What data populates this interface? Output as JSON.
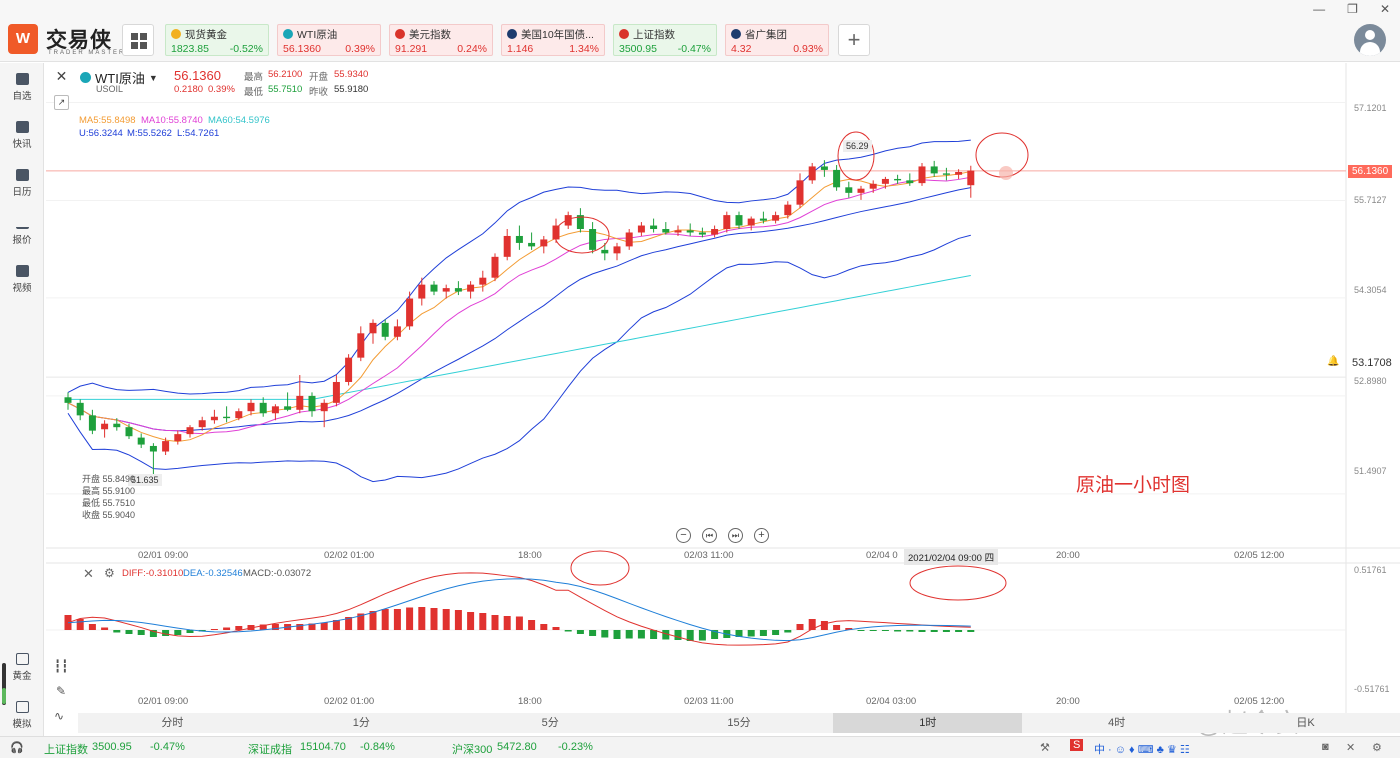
{
  "app": {
    "logo_letter": "W",
    "brand": "交易侠",
    "brand_sub": "TRADER MASTER"
  },
  "tickers": [
    {
      "name": "现货黄金",
      "price": "1823.85",
      "change": "-0.52%",
      "trend": "down",
      "icon_color": "#f2b01e"
    },
    {
      "name": "WTI原油",
      "price": "56.1360",
      "change": "0.39%",
      "trend": "up",
      "icon_color": "#1aa6b7"
    },
    {
      "name": "美元指数",
      "price": "91.291",
      "change": "0.24%",
      "trend": "up",
      "icon_color": "#d9342b"
    },
    {
      "name": "美国10年国债...",
      "price": "1.146",
      "change": "1.34%",
      "trend": "up",
      "icon_color": "#1d3c6e"
    },
    {
      "name": "上证指数",
      "price": "3500.95",
      "change": "-0.47%",
      "trend": "down",
      "icon_color": "#d9342b"
    },
    {
      "name": "省广集团",
      "price": "4.32",
      "change": "0.93%",
      "trend": "up",
      "icon_color": "#1d3c6e"
    }
  ],
  "sidebar": {
    "items": [
      {
        "label": "自选",
        "icon": "star-icon"
      },
      {
        "label": "快讯",
        "icon": "news-icon"
      },
      {
        "label": "日历",
        "icon": "calendar-icon"
      },
      {
        "label": "报价",
        "icon": "quote-icon"
      },
      {
        "label": "视频",
        "icon": "video-icon"
      }
    ],
    "bottom_items": [
      {
        "label": "黄金",
        "icon": "gold-icon"
      },
      {
        "label": "模拟",
        "icon": "simulate-icon"
      }
    ]
  },
  "header": {
    "name": "WTI原油",
    "code": "USOIL",
    "price": "56.1360",
    "change": "0.2180",
    "change_pct": "0.39%",
    "high_label": "最高",
    "high": "56.2100",
    "low_label": "最低",
    "low": "55.7510",
    "open_label": "开盘",
    "open": "55.9340",
    "prev_label": "昨收",
    "prev": "55.9180"
  },
  "ma_legend": {
    "ma5": "MA5:55.8498",
    "ma10": "MA10:55.8740",
    "ma60": "MA60:54.5976"
  },
  "boll_legend": {
    "u": "U:56.3244",
    "m": "M:55.5262",
    "l": "L:54.7261"
  },
  "price_axis": {
    "ticks": [
      "57.1201",
      "55.7127",
      "54.3054",
      "52.8980",
      "51.4907"
    ],
    "current_price": "56.1360",
    "alert_price": "53.1708"
  },
  "time_axis": [
    "02/01 09:00",
    "02/02 01:00",
    "18:00",
    "02/03 11:00",
    "02/04 0",
    "20:00",
    "02/05 12:00"
  ],
  "time_axis_lower": [
    "02/01 09:00",
    "02/02 01:00",
    "18:00",
    "02/03 11:00",
    "02/04 03:00",
    "20:00",
    "02/05 12:00"
  ],
  "crosshair_time": "2021/02/04 09:00 四",
  "peak_label": "56.29",
  "low_marker": "51.635",
  "ohlc_tip": {
    "open": "开盘 55.8490",
    "high": "最高 55.9100",
    "low": "最低 55.7510",
    "close": "收盘 55.9040"
  },
  "annotation": "原油一小时图",
  "macd_legend": {
    "diff": "DIFF:-0.31010",
    "dea": "DEA:-0.32546",
    "macd": "MACD:-0.03072"
  },
  "macd_axis": [
    "0.51761",
    "-0.51761"
  ],
  "timeframes": [
    "分时",
    "1分",
    "5分",
    "15分",
    "1时",
    "4时",
    "日K"
  ],
  "active_timeframe": "1时",
  "status": {
    "items": [
      {
        "name": "上证指数",
        "value": "3500.95",
        "change": "-0.47%"
      },
      {
        "name": "深证成指",
        "value": "15104.70",
        "change": "-0.84%"
      },
      {
        "name": "沪深300",
        "value": "5472.80",
        "change": "-0.23%"
      }
    ]
  },
  "watermark": "@赵今安1",
  "colors": {
    "up": "#e0322f",
    "down": "#1ea03c",
    "ma5": "#f39c34",
    "ma10": "#e040d6",
    "ma60": "#33d0d6",
    "boll": "#1f3fd8"
  },
  "chart_data": {
    "type": "candlestick",
    "title": "WTI原油",
    "ylim": [
      51.0,
      57.4
    ],
    "candles": [
      [
        52.88,
        52.95,
        52.7,
        52.8
      ],
      [
        52.8,
        52.85,
        52.55,
        52.62
      ],
      [
        52.62,
        52.7,
        52.35,
        52.4
      ],
      [
        52.42,
        52.55,
        52.3,
        52.5
      ],
      [
        52.5,
        52.58,
        52.4,
        52.45
      ],
      [
        52.45,
        52.5,
        52.28,
        52.32
      ],
      [
        52.3,
        52.36,
        52.15,
        52.2
      ],
      [
        52.18,
        52.22,
        51.63,
        52.1
      ],
      [
        52.1,
        52.3,
        52.05,
        52.25
      ],
      [
        52.25,
        52.4,
        52.2,
        52.35
      ],
      [
        52.35,
        52.48,
        52.3,
        52.45
      ],
      [
        52.45,
        52.6,
        52.4,
        52.55
      ],
      [
        52.55,
        52.7,
        52.5,
        52.6
      ],
      [
        52.6,
        52.75,
        52.52,
        52.58
      ],
      [
        52.58,
        52.72,
        52.55,
        52.68
      ],
      [
        52.68,
        52.85,
        52.62,
        52.8
      ],
      [
        52.8,
        52.88,
        52.6,
        52.65
      ],
      [
        52.65,
        52.78,
        52.55,
        52.75
      ],
      [
        52.75,
        52.95,
        52.68,
        52.7
      ],
      [
        52.7,
        53.2,
        52.65,
        52.9
      ],
      [
        52.9,
        52.95,
        52.6,
        52.68
      ],
      [
        52.68,
        52.85,
        52.45,
        52.8
      ],
      [
        52.8,
        53.2,
        52.75,
        53.1
      ],
      [
        53.1,
        53.5,
        53.05,
        53.45
      ],
      [
        53.45,
        53.9,
        53.4,
        53.8
      ],
      [
        53.8,
        54.0,
        53.65,
        53.95
      ],
      [
        53.95,
        54.0,
        53.7,
        53.75
      ],
      [
        53.75,
        54.0,
        53.7,
        53.9
      ],
      [
        53.9,
        54.4,
        53.85,
        54.3
      ],
      [
        54.3,
        54.6,
        54.2,
        54.5
      ],
      [
        54.5,
        54.55,
        54.35,
        54.4
      ],
      [
        54.4,
        54.5,
        54.3,
        54.45
      ],
      [
        54.45,
        54.55,
        54.35,
        54.4
      ],
      [
        54.4,
        54.55,
        54.3,
        54.5
      ],
      [
        54.5,
        54.7,
        54.4,
        54.6
      ],
      [
        54.6,
        54.95,
        54.55,
        54.9
      ],
      [
        54.9,
        55.3,
        54.85,
        55.2
      ],
      [
        55.2,
        55.35,
        55.0,
        55.1
      ],
      [
        55.1,
        55.25,
        55.0,
        55.05
      ],
      [
        55.05,
        55.2,
        54.95,
        55.15
      ],
      [
        55.15,
        55.45,
        55.1,
        55.35
      ],
      [
        55.35,
        55.55,
        55.3,
        55.5
      ],
      [
        55.5,
        55.6,
        55.25,
        55.3
      ],
      [
        55.3,
        55.4,
        54.95,
        55.0
      ],
      [
        55.0,
        55.1,
        54.85,
        54.95
      ],
      [
        54.95,
        55.1,
        54.85,
        55.05
      ],
      [
        55.05,
        55.3,
        55.0,
        55.25
      ],
      [
        55.25,
        55.4,
        55.2,
        55.35
      ],
      [
        55.35,
        55.45,
        55.25,
        55.3
      ],
      [
        55.3,
        55.4,
        55.22,
        55.25
      ],
      [
        55.25,
        55.35,
        55.2,
        55.28
      ],
      [
        55.28,
        55.38,
        55.2,
        55.25
      ],
      [
        55.25,
        55.32,
        55.18,
        55.22
      ],
      [
        55.22,
        55.35,
        55.18,
        55.3
      ],
      [
        55.3,
        55.55,
        55.25,
        55.5
      ],
      [
        55.5,
        55.55,
        55.3,
        55.35
      ],
      [
        55.35,
        55.48,
        55.28,
        55.45
      ],
      [
        55.45,
        55.55,
        55.38,
        55.42
      ],
      [
        55.42,
        55.55,
        55.38,
        55.5
      ],
      [
        55.5,
        55.7,
        55.45,
        55.65
      ],
      [
        55.65,
        56.1,
        55.6,
        56.0
      ],
      [
        56.0,
        56.25,
        55.95,
        56.2
      ],
      [
        56.2,
        56.29,
        56.05,
        56.15
      ],
      [
        56.15,
        56.22,
        55.85,
        55.9
      ],
      [
        55.9,
        55.98,
        55.75,
        55.82
      ],
      [
        55.82,
        55.92,
        55.72,
        55.88
      ],
      [
        55.88,
        56.0,
        55.82,
        55.95
      ],
      [
        55.95,
        56.05,
        55.88,
        56.02
      ],
      [
        56.02,
        56.08,
        55.95,
        56.0
      ],
      [
        56.0,
        56.1,
        55.92,
        55.96
      ],
      [
        55.96,
        56.25,
        55.92,
        56.2
      ],
      [
        56.2,
        56.28,
        56.05,
        56.1
      ],
      [
        56.1,
        56.18,
        56.0,
        56.08
      ],
      [
        56.08,
        56.16,
        56.02,
        56.12
      ],
      [
        55.93,
        56.21,
        55.75,
        56.14
      ]
    ],
    "macd_hist": [
      0.3,
      0.22,
      0.12,
      0.05,
      -0.05,
      -0.08,
      -0.1,
      -0.14,
      -0.12,
      -0.1,
      -0.06,
      -0.03,
      0.02,
      0.05,
      0.08,
      0.1,
      0.11,
      0.12,
      0.12,
      0.12,
      0.13,
      0.15,
      0.2,
      0.26,
      0.33,
      0.38,
      0.42,
      0.42,
      0.45,
      0.46,
      0.44,
      0.42,
      0.4,
      0.36,
      0.34,
      0.3,
      0.28,
      0.27,
      0.2,
      0.12,
      0.06,
      -0.03,
      -0.08,
      -0.12,
      -0.15,
      -0.18,
      -0.17,
      -0.17,
      -0.18,
      -0.19,
      -0.2,
      -0.22,
      -0.21,
      -0.18,
      -0.16,
      -0.14,
      -0.13,
      -0.12,
      -0.1,
      -0.05,
      0.12,
      0.22,
      0.18,
      0.1,
      0.04,
      -0.01,
      -0.02,
      -0.02,
      -0.03,
      -0.03,
      -0.04,
      -0.04,
      -0.04,
      -0.04,
      -0.04
    ]
  }
}
